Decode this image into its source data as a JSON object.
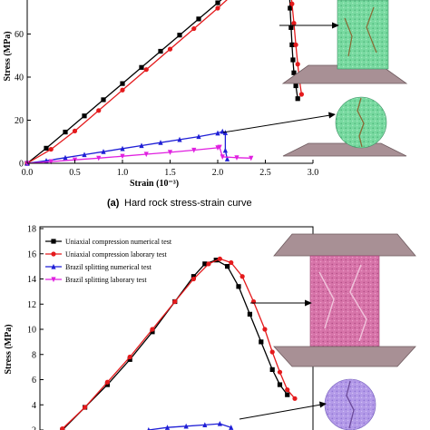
{
  "captions": {
    "a_tag": "(a)",
    "a_text": "Hard rock stress-strain curve"
  },
  "chart_data": [
    {
      "type": "line",
      "id": "hard-rock",
      "xlabel": "Strain (10⁻³)",
      "ylabel": "Stress (MPa)",
      "xlim": [
        0,
        3.0
      ],
      "ylim": [
        0,
        80
      ],
      "xticks": [
        "0.0",
        "0.5",
        "1.0",
        "1.5",
        "2.0",
        "2.5",
        "3.0"
      ],
      "yticks": [
        "0",
        "20",
        "40",
        "60"
      ],
      "series": [
        {
          "color": "#000000",
          "marker": "square",
          "x": [
            0,
            0.2,
            0.4,
            0.6,
            0.8,
            1.0,
            1.2,
            1.4,
            1.6,
            1.8,
            2.0,
            2.2
          ],
          "y": [
            0,
            7,
            14.5,
            22,
            29.5,
            37,
            44.5,
            52,
            59.5,
            67,
            74.5,
            82
          ]
        },
        {
          "color": "#e41a1c",
          "marker": "circle",
          "x": [
            0,
            0.25,
            0.5,
            0.75,
            1.0,
            1.25,
            1.5,
            1.75,
            2.0,
            2.2
          ],
          "y": [
            0,
            6.5,
            15,
            24.5,
            34,
            43.5,
            53,
            62.5,
            72,
            80
          ]
        },
        {
          "color": "#000000",
          "marker": "square",
          "x": [
            2.75,
            2.76,
            2.77,
            2.78,
            2.79,
            2.8,
            2.82,
            2.84
          ],
          "y": [
            82,
            72,
            63,
            55,
            48,
            42,
            36,
            30
          ]
        },
        {
          "color": "#e41a1c",
          "marker": "circle",
          "x": [
            2.76,
            2.78,
            2.8,
            2.82,
            2.84,
            2.86,
            2.88
          ],
          "y": [
            82,
            74,
            65,
            55,
            46,
            38,
            32
          ]
        },
        {
          "color": "#1f1fd6",
          "marker": "triangle",
          "x": [
            0,
            0.2,
            0.4,
            0.6,
            0.8,
            1.0,
            1.2,
            1.4,
            1.6,
            1.8,
            2.0,
            2.05,
            2.08,
            2.08,
            2.1
          ],
          "y": [
            0,
            1.2,
            2.6,
            4.0,
            5.4,
            6.8,
            8.2,
            9.6,
            11.0,
            12.4,
            14.0,
            14.8,
            14.2,
            6,
            2
          ]
        },
        {
          "color": "#e020e0",
          "marker": "triangle-down",
          "x": [
            0,
            0.25,
            0.5,
            0.75,
            1.0,
            1.25,
            1.5,
            1.75,
            2.0,
            2.02,
            2.05,
            2.2,
            2.35
          ],
          "y": [
            0,
            0.8,
            1.6,
            2.4,
            3.3,
            4.2,
            5.1,
            6.1,
            7.2,
            7.5,
            3,
            2.6,
            2.4
          ]
        }
      ]
    },
    {
      "type": "line",
      "id": "soft-rock",
      "ylabel": "Stress (MPa)",
      "ylim": [
        2,
        18
      ],
      "yticks": [
        "2",
        "4",
        "6",
        "8",
        "10",
        "12",
        "14",
        "16",
        "18"
      ],
      "legend_position": "top-left",
      "series": [
        {
          "name": "Uniaxial compression numerical test",
          "color": "#000000",
          "marker": "square",
          "x": [
            0.3,
            0.6,
            0.9,
            1.2,
            1.5,
            1.8,
            2.05,
            2.2,
            2.35,
            2.5,
            2.65,
            2.8,
            2.95,
            3.1,
            3.2,
            3.3
          ],
          "y": [
            2,
            3.8,
            5.6,
            7.6,
            9.8,
            12.2,
            14.2,
            15.2,
            15.5,
            15.0,
            13.4,
            11.2,
            9.0,
            6.8,
            5.6,
            4.8
          ]
        },
        {
          "name": "Uniaxial compression laborary test",
          "color": "#e41a1c",
          "marker": "circle",
          "x": [
            0.3,
            0.6,
            0.9,
            1.2,
            1.5,
            1.8,
            2.05,
            2.25,
            2.4,
            2.55,
            2.7,
            2.85,
            3.0,
            3.1,
            3.2,
            3.3,
            3.4
          ],
          "y": [
            2.1,
            3.8,
            5.8,
            7.8,
            10.0,
            12.2,
            14.0,
            15.2,
            15.6,
            15.3,
            14.2,
            12.2,
            10.0,
            8.2,
            6.6,
            5.2,
            4.5
          ]
        },
        {
          "name": "Brazil splitting numerical test",
          "color": "#1f1fd6",
          "marker": "triangle",
          "x": [
            1.45,
            1.7,
            1.95,
            2.2,
            2.4,
            2.55
          ],
          "y": [
            2.0,
            2.2,
            2.3,
            2.4,
            2.5,
            2.2
          ]
        },
        {
          "name": "Brazil splitting laborary test",
          "color": "#e020e0",
          "marker": "triangle-down",
          "x": [],
          "y": []
        }
      ]
    }
  ],
  "illustrations": {
    "top_cylinder": "rock-cylinder-green",
    "top_disk": "rock-disk-green",
    "bottom_cylinder": "rock-cylinder-pink",
    "bottom_disk": "rock-disk-purple"
  }
}
